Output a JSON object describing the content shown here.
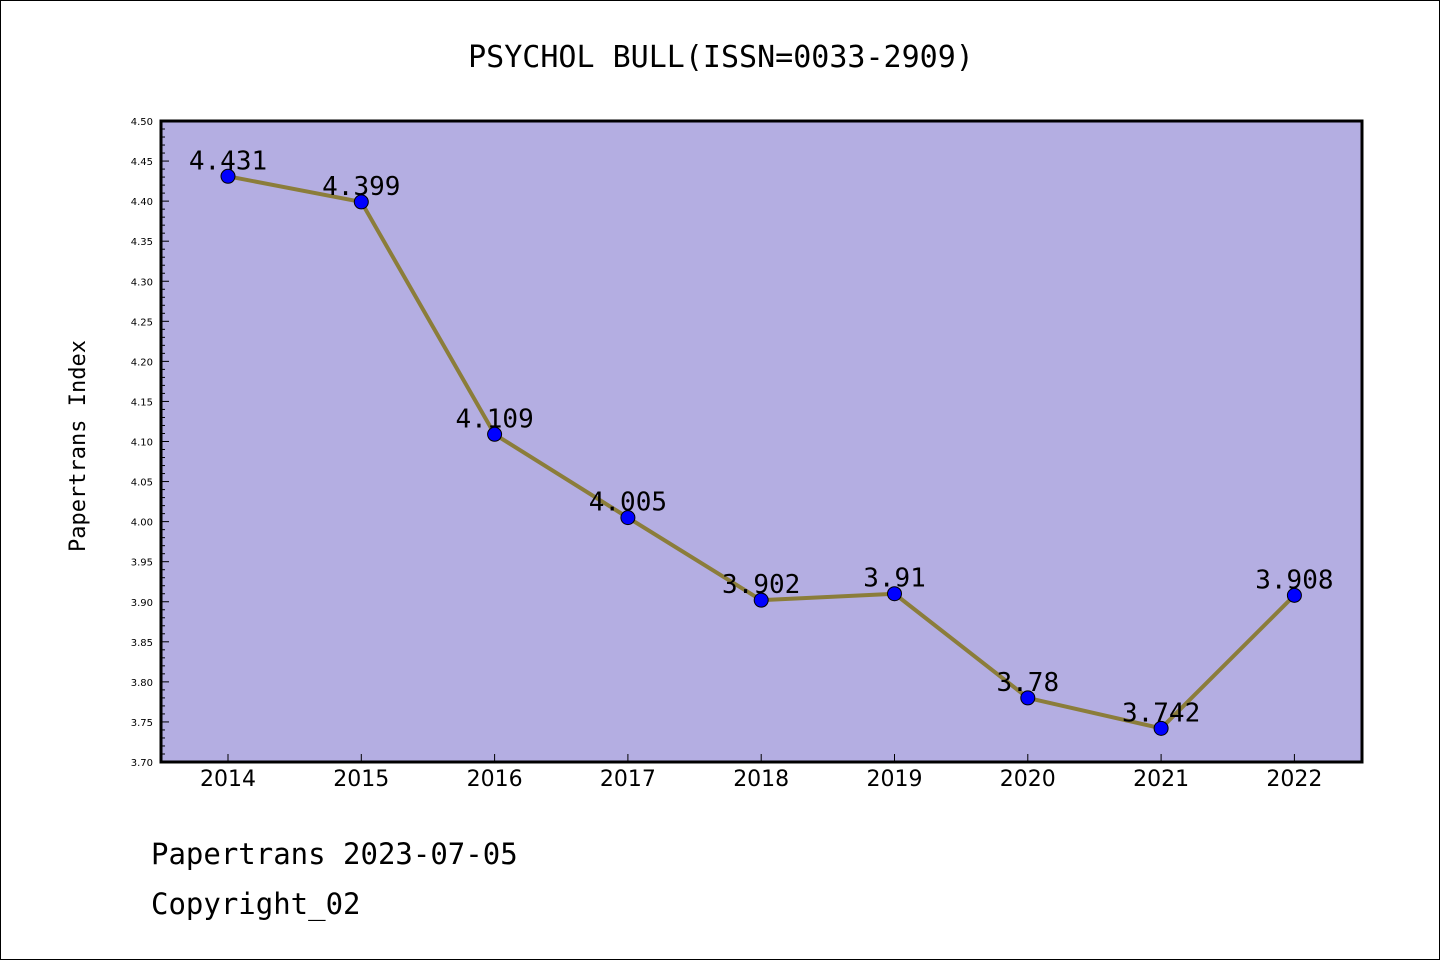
{
  "chart_data": {
    "type": "line",
    "title": "PSYCHOL BULL(ISSN=0033-2909)",
    "xlabel": "",
    "ylabel": "Papertrans Index",
    "categories": [
      "2014",
      "2015",
      "2016",
      "2017",
      "2018",
      "2019",
      "2020",
      "2021",
      "2022"
    ],
    "series": [
      {
        "values": [
          4.431,
          4.399,
          4.109,
          4.005,
          3.902,
          3.91,
          3.78,
          3.742,
          3.908
        ],
        "labels": [
          "4.431",
          "4.399",
          "4.109",
          "4.005",
          "3.902",
          "3.91",
          "3.78",
          "3.742",
          "3.908"
        ]
      }
    ],
    "ylim": [
      3.7,
      4.5
    ],
    "yticks": [
      "3.70",
      "3.75",
      "3.80",
      "3.85",
      "3.90",
      "3.95",
      "4.00",
      "4.05",
      "4.10",
      "4.15",
      "4.20",
      "4.25",
      "4.30",
      "4.35",
      "4.40",
      "4.45",
      "4.50"
    ],
    "grid": false,
    "colors": {
      "plot_bg": "#b4aee2",
      "line": "#8b7d3a",
      "marker": "#0000ff"
    }
  },
  "footer": {
    "line1": "Papertrans 2023-07-05",
    "line2": "Copyright_02"
  }
}
